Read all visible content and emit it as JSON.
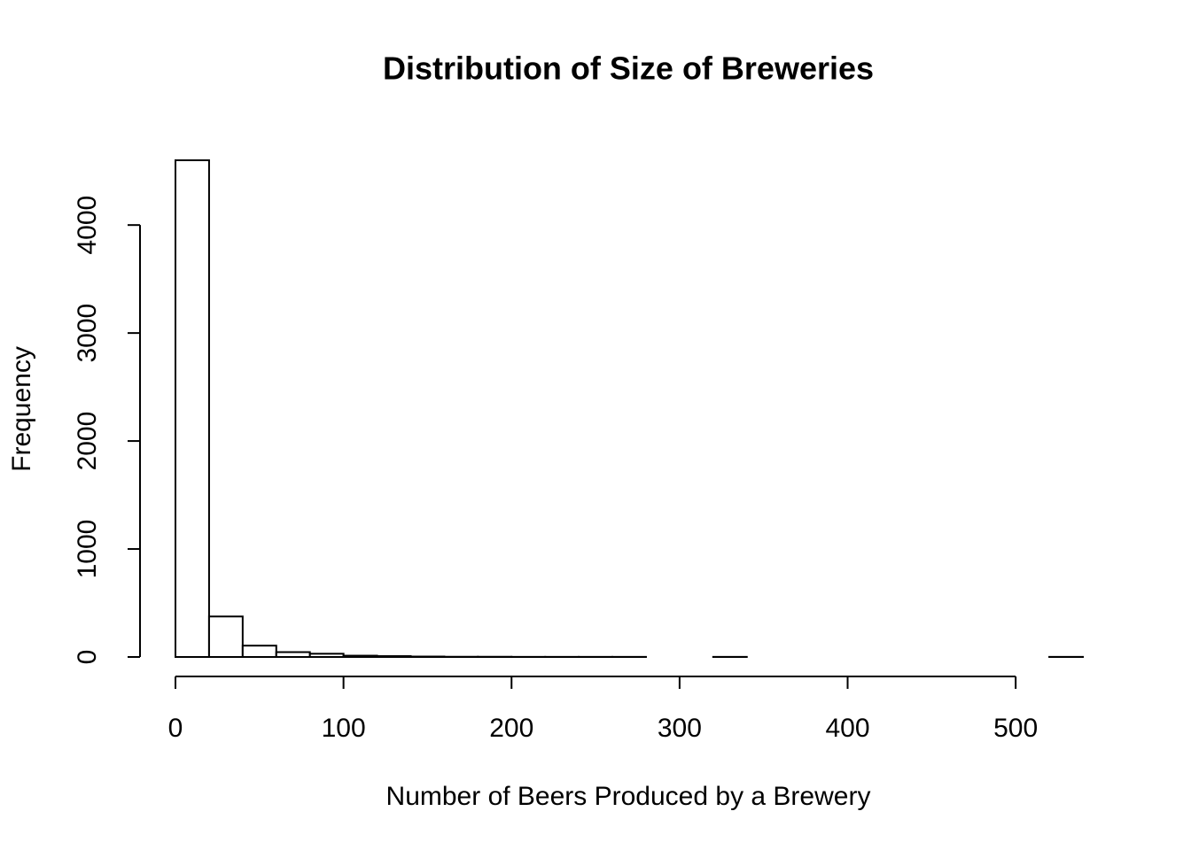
{
  "chart_data": {
    "type": "histogram",
    "title": "Distribution of Size of Breweries",
    "x_label": "Number of Beers Produced by a Brewery",
    "y_label": "Frequency",
    "bins": [
      0,
      20,
      40,
      60,
      80,
      100,
      120,
      140,
      160,
      180,
      200,
      220,
      240,
      260,
      280,
      300,
      320,
      340,
      360,
      380,
      400,
      420,
      440,
      460,
      480,
      500,
      520,
      540
    ],
    "values": [
      4600,
      375,
      105,
      45,
      30,
      12,
      8,
      4,
      2,
      2,
      1,
      1,
      1,
      1,
      0,
      0,
      1,
      0,
      0,
      0,
      0,
      0,
      0,
      0,
      0,
      0,
      1
    ],
    "color": "#ffffff",
    "xlim": [
      0,
      540
    ],
    "xticks": [
      0,
      100,
      200,
      300,
      400,
      500
    ],
    "ylim": [
      0,
      4600
    ],
    "yticks": [
      0,
      1000,
      2000,
      3000,
      4000
    ]
  }
}
